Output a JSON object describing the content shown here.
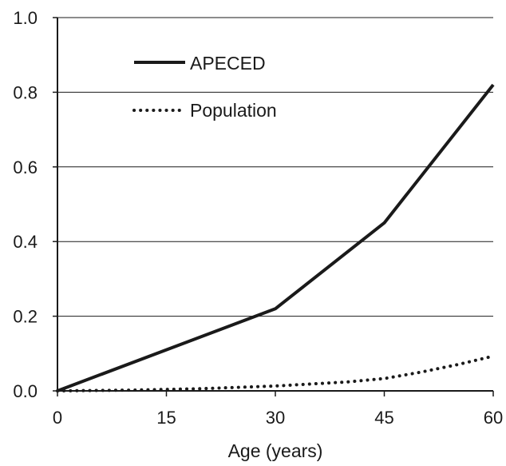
{
  "chart_data": {
    "type": "line",
    "title": "",
    "xlabel": "Age (years)",
    "ylabel": "",
    "x": [
      0,
      15,
      30,
      45,
      60
    ],
    "xlim": [
      0,
      60
    ],
    "ylim": [
      0,
      1.0
    ],
    "x_ticks": [
      "0",
      "15",
      "30",
      "45",
      "60"
    ],
    "y_ticks": [
      "0.0",
      "0.2",
      "0.4",
      "0.6",
      "0.8",
      "1.0"
    ],
    "grid": "horizontal",
    "legend_position": "top-left",
    "series": [
      {
        "name": "APECED",
        "style": "solid",
        "color": "#1a1a1a",
        "x": [
          0,
          30,
          45,
          60
        ],
        "values": [
          0.0,
          0.22,
          0.45,
          0.82
        ]
      },
      {
        "name": "Population",
        "style": "dotted",
        "color": "#1a1a1a",
        "x": [
          0,
          10,
          20,
          30,
          40,
          45,
          50,
          55,
          60
        ],
        "values": [
          0.0,
          0.002,
          0.006,
          0.013,
          0.024,
          0.033,
          0.05,
          0.07,
          0.093
        ]
      }
    ]
  }
}
